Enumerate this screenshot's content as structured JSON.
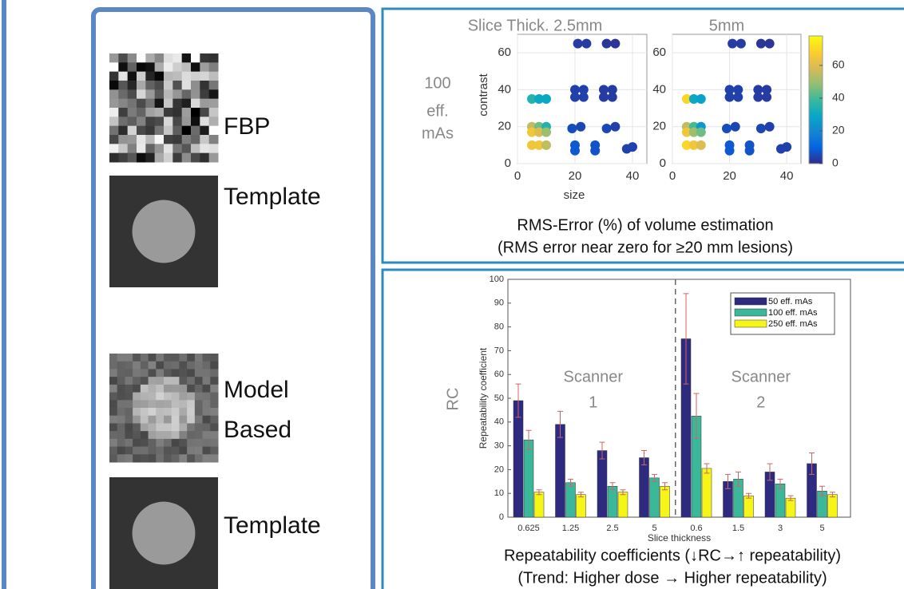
{
  "left_panel": {
    "labels": [
      [
        "FBP"
      ],
      [
        "Template"
      ],
      [
        "Model",
        "Based"
      ],
      [
        "Template"
      ]
    ]
  },
  "top_panel": {
    "row_label": [
      "100",
      "eff.",
      "mAs"
    ],
    "caption": [
      "RMS-Error (%) of volume estimation",
      "(RMS error near zero for ≥20 mm lesions)"
    ]
  },
  "bottom_panel": {
    "outer_y_label": "RC",
    "caption": [
      "Repeatability coefficients (↓RC→↑ repeatability)",
      "(Trend: Higher dose → Higher repeatability)"
    ]
  },
  "chart_data": [
    {
      "type": "scatter",
      "title": "Slice Thick. 2.5mm",
      "x_label": "size",
      "y_label": "contrast",
      "xlim": [
        0,
        45
      ],
      "ylim": [
        0,
        70
      ],
      "xticks": [
        0,
        20,
        40
      ],
      "yticks": [
        0,
        20,
        40,
        60
      ],
      "grid": true,
      "colormap": [
        "#352a87",
        "#0363e1",
        "#1485d4",
        "#06a7c6",
        "#38b99e",
        "#92bf73",
        "#d9ba56",
        "#fcce2e",
        "#f9fb0e"
      ],
      "clim": [
        0,
        78
      ],
      "x": [
        5,
        7.5,
        10,
        5,
        7.5,
        10,
        5,
        7.5,
        10,
        5,
        7.5,
        10,
        21,
        24,
        31,
        34,
        20,
        23,
        20,
        23,
        30,
        33,
        30,
        33,
        19,
        22,
        31,
        34,
        20,
        20,
        27,
        27,
        38,
        40
      ],
      "y": [
        35,
        35,
        35,
        20,
        20,
        20,
        17,
        17,
        17,
        10,
        10,
        10,
        65,
        65,
        65,
        65,
        40,
        40,
        36,
        36,
        40,
        40,
        36,
        36,
        19,
        20,
        19,
        20,
        10,
        7,
        10,
        7,
        8,
        9
      ],
      "color_values": [
        35,
        30,
        30,
        55,
        45,
        35,
        65,
        60,
        50,
        65,
        65,
        55,
        3,
        3,
        2,
        2,
        4,
        4,
        4,
        4,
        3,
        3,
        3,
        3,
        6,
        5,
        5,
        4,
        8,
        8,
        7,
        7,
        4,
        4
      ]
    },
    {
      "type": "scatter",
      "title": "5mm",
      "xlim": [
        0,
        45
      ],
      "ylim": [
        0,
        70
      ],
      "xticks": [
        0,
        20,
        40
      ],
      "yticks": [
        0,
        20,
        40,
        60
      ],
      "grid": true,
      "colormap": [
        "#352a87",
        "#0363e1",
        "#1485d4",
        "#06a7c6",
        "#38b99e",
        "#92bf73",
        "#d9ba56",
        "#fcce2e",
        "#f9fb0e"
      ],
      "clim": [
        0,
        78
      ],
      "cticks": [
        0,
        20,
        40,
        60
      ],
      "x": [
        5,
        7.5,
        10,
        5,
        7.5,
        10,
        5,
        7.5,
        10,
        5,
        7.5,
        10,
        21,
        24,
        31,
        34,
        20,
        23,
        20,
        23,
        30,
        33,
        30,
        33,
        19,
        22,
        31,
        34,
        20,
        20,
        27,
        27,
        38,
        40
      ],
      "y": [
        35,
        35,
        35,
        20,
        20,
        20,
        17,
        17,
        17,
        10,
        10,
        10,
        65,
        65,
        65,
        65,
        40,
        40,
        36,
        36,
        40,
        40,
        36,
        36,
        19,
        20,
        19,
        20,
        10,
        7,
        10,
        7,
        8,
        9
      ],
      "color_values": [
        70,
        30,
        28,
        55,
        40,
        25,
        65,
        50,
        45,
        70,
        65,
        60,
        3,
        3,
        2,
        2,
        4,
        4,
        4,
        4,
        3,
        3,
        3,
        3,
        6,
        5,
        5,
        4,
        8,
        8,
        7,
        7,
        4,
        4
      ]
    },
    {
      "type": "bar",
      "x_label": "Slice thickness",
      "y_label": "Repeatability coefficient",
      "categories": [
        "0.625",
        "1.25",
        "2.5",
        "5",
        "0.6",
        "1.5",
        "3",
        "5"
      ],
      "ylim": [
        0,
        100
      ],
      "yticks": [
        0,
        10,
        20,
        30,
        40,
        50,
        60,
        70,
        80,
        90,
        100
      ],
      "annotations": [
        [
          "Scanner",
          "1"
        ],
        [
          "Scanner",
          "2"
        ]
      ],
      "legend": "upper right",
      "series": [
        {
          "name": "50 eff. mAs",
          "color": "#2e2a80",
          "values": [
            49,
            39,
            28,
            25,
            75,
            15,
            19,
            22.5
          ],
          "errors": [
            7,
            5.5,
            3.5,
            3,
            19,
            3,
            3.5,
            4.5
          ]
        },
        {
          "name": "100 eff. mAs",
          "color": "#3bb89a",
          "values": [
            32.5,
            14.5,
            13,
            16.5,
            42.5,
            16,
            14,
            11
          ],
          "errors": [
            4,
            1.5,
            1.5,
            1.5,
            9.5,
            3,
            2,
            2
          ]
        },
        {
          "name": "250 eff. mAs",
          "color": "#f5f518",
          "values": [
            10.5,
            9.5,
            10.5,
            13,
            20.5,
            9,
            8,
            9.5
          ],
          "errors": [
            1,
            1,
            1,
            1.5,
            2,
            1,
            1,
            1
          ]
        }
      ]
    }
  ]
}
